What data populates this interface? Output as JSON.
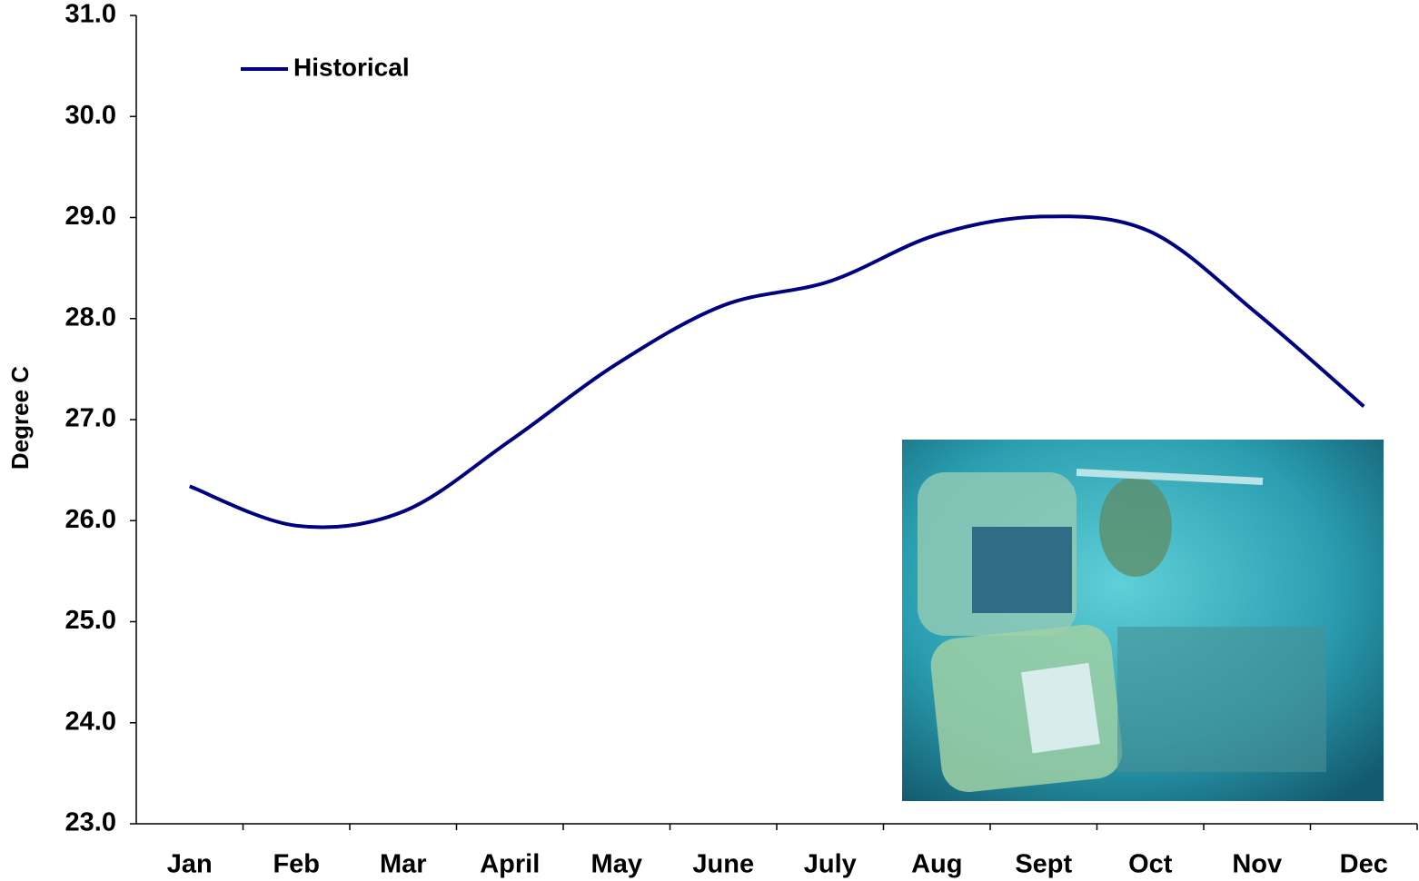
{
  "chart_data": {
    "type": "line",
    "y_label": "Degree C",
    "categories": [
      "Jan",
      "Feb",
      "Mar",
      "April",
      "May",
      "June",
      "July",
      "Aug",
      "Sept",
      "Oct",
      "Nov",
      "Dec"
    ],
    "series": [
      {
        "name": "Historical",
        "color": "#000080",
        "values": [
          26.34,
          25.95,
          26.09,
          26.79,
          27.55,
          28.13,
          28.37,
          28.83,
          29.01,
          28.86,
          28.05,
          27.13
        ]
      }
    ],
    "ylim": [
      23,
      31
    ],
    "yticks": [
      {
        "value": 23,
        "label": "23.0"
      },
      {
        "value": 24,
        "label": "24.0"
      },
      {
        "value": 25,
        "label": "25.0"
      },
      {
        "value": 26,
        "label": "26.0"
      },
      {
        "value": 27,
        "label": "27.0"
      },
      {
        "value": 28,
        "label": "28.0"
      },
      {
        "value": 29,
        "label": "29.0"
      },
      {
        "value": 30,
        "label": "30.0"
      },
      {
        "value": 31,
        "label": "31.0"
      }
    ],
    "legend": "upper left",
    "grid": false
  }
}
